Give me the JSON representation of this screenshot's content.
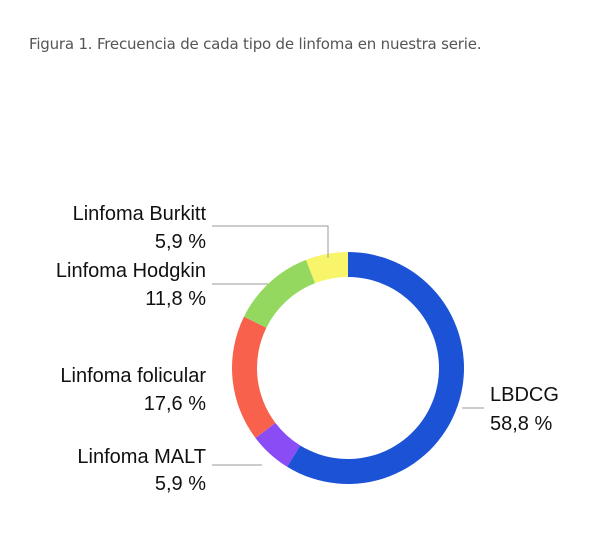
{
  "caption": "Figura 1. Frecuencia de cada tipo de linfoma en nuestra serie.",
  "chart_data": {
    "type": "pie",
    "donut": true,
    "title": "Figura 1. Frecuencia de cada tipo de linfoma en nuestra serie.",
    "unit": "%",
    "slices": [
      {
        "label": "LBDCG",
        "value": 58.8,
        "value_text": "58,8 %",
        "color": "#1c52d6"
      },
      {
        "label": "Linfoma MALT",
        "value": 5.9,
        "value_text": "5,9 %",
        "color": "#8a4cf5"
      },
      {
        "label": "Linfoma folicular",
        "value": 17.6,
        "value_text": "17,6 %",
        "color": "#f8624d"
      },
      {
        "label": "Linfoma Hodgkin",
        "value": 11.8,
        "value_text": "11,8 %",
        "color": "#95d85f"
      },
      {
        "label": "Linfoma Burkitt",
        "value": 5.9,
        "value_text": "5,9 %",
        "color": "#f8f56a"
      }
    ],
    "legend": "none",
    "grid": false
  }
}
